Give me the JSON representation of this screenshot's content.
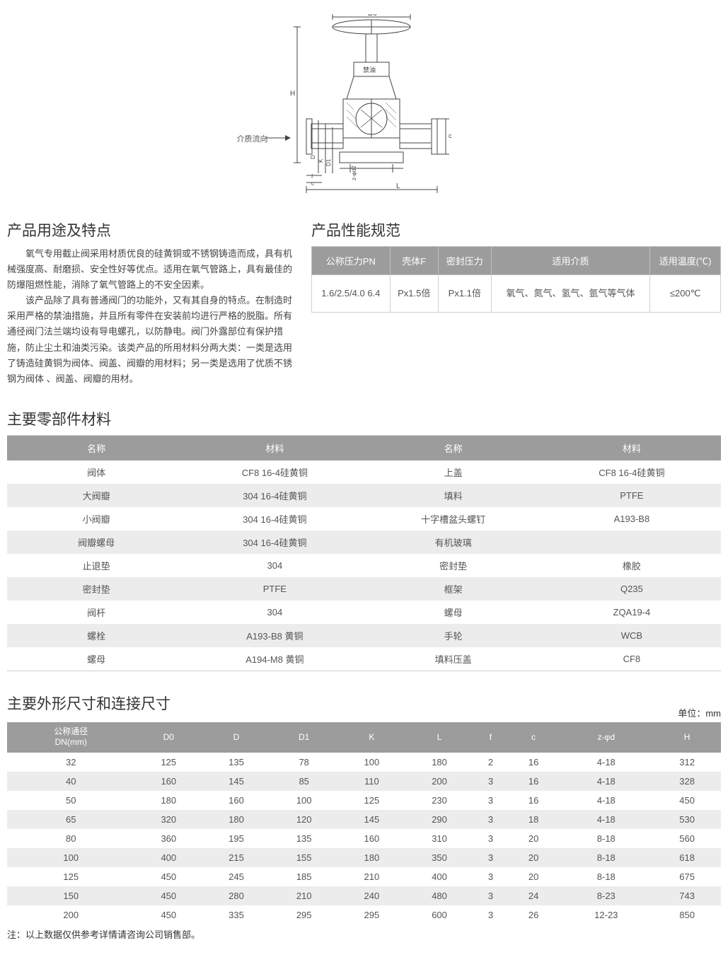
{
  "diagram": {
    "flow_label": "介质流向",
    "dim_labels": [
      "D0",
      "H",
      "D",
      "K",
      "D1",
      "f",
      "c",
      "z-φd2",
      "L",
      "c"
    ],
    "ban_oil": "禁油"
  },
  "usage": {
    "title": "产品用途及特点",
    "para1": "氧气专用截止阀采用材质优良的硅黄铜或不锈钢铸造而成，具有机械强度高、耐磨损、安全性好等优点。适用在氧气管路上，具有最佳的防爆阻燃性能，消除了氧气管路上的不安全因素。",
    "para2": "该产品除了具有普通阀门的功能外，又有其自身的特点。在制造时采用严格的禁油措施，并且所有零件在安装前均进行严格的脱脂。所有通径阀门法兰端均设有导电螺孔，以防静电。阀门外露部位有保护措施，防止尘土和油类污染。该类产品的所用材料分两大类：一类是选用了铸造硅黄铜为阀体、阀盖、阀瓣的用材料；另一类是选用了优质不锈钢为阀体 、阀盖、阀瓣的用材。"
  },
  "perf": {
    "title": "产品性能规范",
    "headers": [
      "公称压力PN",
      "壳体F",
      "密封压力",
      "适用介质",
      "适用温度(℃)"
    ],
    "row": {
      "pn": "1.6/2.5/4.0 6.4",
      "shell": "Px1.5倍",
      "seal": "Px1.1倍",
      "media": "氧气、氮气、氢气、氩气等气体",
      "temp": "≤200℃"
    }
  },
  "materials": {
    "title": "主要零部件材料",
    "headers": [
      "名称",
      "材料",
      "名称",
      "材料"
    ],
    "rows": [
      [
        "阀体",
        "CF8 16-4硅黄铜",
        "上盖",
        "CF8 16-4硅黄铜"
      ],
      [
        "大阀瓣",
        "304 16-4硅黄铜",
        "填料",
        "PTFE"
      ],
      [
        "小阀瓣",
        "304 16-4硅黄铜",
        "十字槽盆头螺钉",
        "A193-B8"
      ],
      [
        "阀瓣螺母",
        "304 16-4硅黄铜",
        "有机玻璃",
        ""
      ],
      [
        "止退垫",
        "304",
        "密封垫",
        "橡胶"
      ],
      [
        "密封垫",
        "PTFE",
        "框架",
        "Q235"
      ],
      [
        "阀杆",
        "304",
        "螺母",
        "ZQA19-4"
      ],
      [
        "螺栓",
        "A193-B8 黄铜",
        "手轮",
        "WCB"
      ],
      [
        "螺母",
        "A194-M8 黄铜",
        "填料压盖",
        "CF8"
      ]
    ]
  },
  "dims": {
    "title": "主要外形尺寸和连接尺寸",
    "unit": "单位：mm",
    "headers": [
      "公称通径\nDN(mm)",
      "D0",
      "D",
      "D1",
      "K",
      "L",
      "f",
      "c",
      "z-φd",
      "H"
    ],
    "rows": [
      [
        "32",
        "125",
        "135",
        "78",
        "100",
        "180",
        "2",
        "16",
        "4-18",
        "312"
      ],
      [
        "40",
        "160",
        "145",
        "85",
        "110",
        "200",
        "3",
        "16",
        "4-18",
        "328"
      ],
      [
        "50",
        "180",
        "160",
        "100",
        "125",
        "230",
        "3",
        "16",
        "4-18",
        "450"
      ],
      [
        "65",
        "320",
        "180",
        "120",
        "145",
        "290",
        "3",
        "18",
        "4-18",
        "530"
      ],
      [
        "80",
        "360",
        "195",
        "135",
        "160",
        "310",
        "3",
        "20",
        "8-18",
        "560"
      ],
      [
        "100",
        "400",
        "215",
        "155",
        "180",
        "350",
        "3",
        "20",
        "8-18",
        "618"
      ],
      [
        "125",
        "450",
        "245",
        "185",
        "210",
        "400",
        "3",
        "20",
        "8-18",
        "675"
      ],
      [
        "150",
        "450",
        "280",
        "210",
        "240",
        "480",
        "3",
        "24",
        "8-23",
        "743"
      ],
      [
        "200",
        "450",
        "335",
        "295",
        "295",
        "600",
        "3",
        "26",
        "12-23",
        "850"
      ]
    ],
    "note": "注：以上数据仅供参考详情请咨询公司销售部。"
  },
  "colors": {
    "header_bg": "#9c9c9c",
    "header_fg": "#ffffff",
    "row_alt": "#ececec",
    "border": "#cccccc",
    "text": "#333333"
  }
}
